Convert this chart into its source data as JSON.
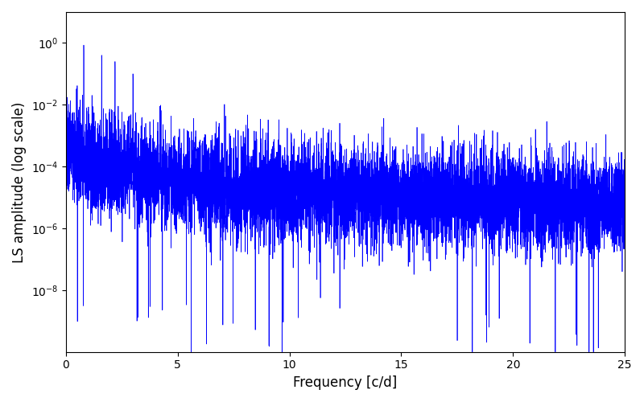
{
  "title": "",
  "xlabel": "Frequency [c/d]",
  "ylabel": "LS amplitude (log scale)",
  "line_color": "#0000ff",
  "line_width": 0.5,
  "xlim": [
    0,
    25
  ],
  "ylim_log": [
    1e-10,
    10.0
  ],
  "yticks": [
    1e-08,
    1e-06,
    0.0001,
    0.01,
    1.0
  ],
  "xticks": [
    0,
    5,
    10,
    15,
    20,
    25
  ],
  "figsize": [
    8.0,
    5.0
  ],
  "dpi": 100,
  "seed": 137,
  "n_points": 8000,
  "freq_max": 25.0,
  "background_color": "#ffffff"
}
